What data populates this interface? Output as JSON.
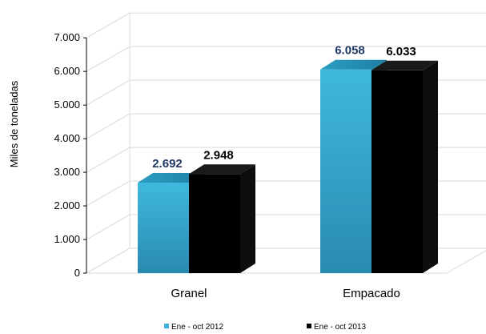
{
  "chart_data": {
    "type": "bar",
    "title": "",
    "xlabel": "",
    "ylabel": "Miles de toneladas",
    "categories": [
      "Granel",
      "Empacado"
    ],
    "series": [
      {
        "name": "Ene - oct 2012",
        "values": [
          2692,
          6058
        ],
        "labels": [
          "2.692",
          "6.058"
        ],
        "color": "#3bb2d6",
        "label_color": "#1f3864"
      },
      {
        "name": "Ene - oct 2013",
        "values": [
          2948,
          6033
        ],
        "labels": [
          "2.948",
          "6.033"
        ],
        "color": "#000000",
        "label_color": "#000000"
      }
    ],
    "ylim": [
      0,
      7000
    ],
    "yticks": [
      "0",
      "1.000",
      "2.000",
      "3.000",
      "4.000",
      "5.000",
      "6.000",
      "7.000"
    ],
    "grid": true,
    "legend_position": "bottom",
    "style": "3d-column"
  }
}
